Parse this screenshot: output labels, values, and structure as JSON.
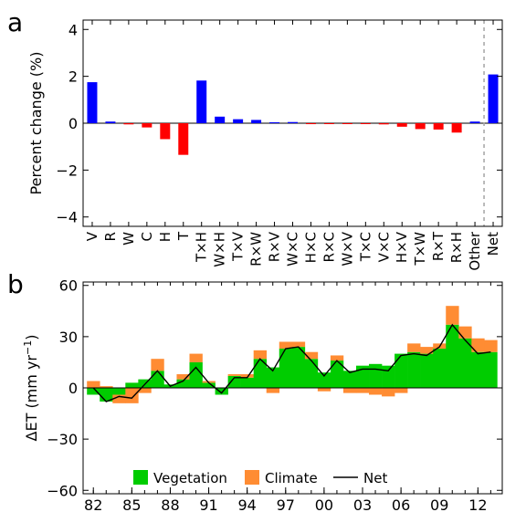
{
  "chart_data": [
    {
      "type": "bar",
      "panel_label": "a",
      "ylabel": "Percent change (%)",
      "ylim": [
        -4.4,
        4.4
      ],
      "yticks": [
        -4,
        -2,
        0,
        2,
        4
      ],
      "categories": [
        "V",
        "R",
        "W",
        "C",
        "H",
        "T",
        "T×H",
        "W×H",
        "T×V",
        "R×W",
        "R×V",
        "W×C",
        "H×C",
        "R×C",
        "W×V",
        "T×C",
        "V×C",
        "H×V",
        "T×W",
        "R×T",
        "R×H",
        "Other",
        "Net"
      ],
      "values": [
        1.75,
        0.07,
        -0.05,
        -0.18,
        -0.68,
        -1.35,
        1.82,
        0.28,
        0.17,
        0.14,
        0.04,
        0.05,
        -0.04,
        -0.03,
        -0.03,
        -0.03,
        -0.05,
        -0.15,
        -0.25,
        -0.27,
        -0.4,
        0.07,
        2.08
      ],
      "positive_color": "#0000ff",
      "negative_color": "#ff0000",
      "separator_before": "Net"
    },
    {
      "type": "bar",
      "panel_label": "b",
      "ylabel": "ΔET (mm yr",
      "ylabel_sup": "−1",
      "ylabel_end": ")",
      "ylim": [
        -62,
        62
      ],
      "yticks": [
        -60,
        -30,
        0,
        30,
        60
      ],
      "x": [
        1982,
        1983,
        1984,
        1985,
        1986,
        1987,
        1988,
        1989,
        1990,
        1991,
        1992,
        1993,
        1994,
        1995,
        1996,
        1997,
        1998,
        1999,
        2000,
        2001,
        2002,
        2003,
        2004,
        2005,
        2006,
        2007,
        2008,
        2009,
        2010,
        2011,
        2012,
        2013
      ],
      "xtick_labels": [
        "82",
        "85",
        "88",
        "91",
        "94",
        "97",
        "00",
        "03",
        "06",
        "09",
        "12"
      ],
      "xtick_years": [
        1982,
        1985,
        1988,
        1991,
        1994,
        1997,
        2000,
        2003,
        2006,
        2009,
        2012
      ],
      "series": [
        {
          "name": "Vegetation",
          "color": "#00cc00",
          "values": [
            -4,
            -8,
            -4,
            3,
            5,
            10,
            2,
            5,
            15,
            3,
            -4,
            7,
            6,
            17,
            12,
            23,
            24,
            17,
            9,
            16,
            10,
            13,
            14,
            13,
            20,
            21,
            20,
            23,
            37,
            29,
            21,
            21
          ]
        },
        {
          "name": "Climate",
          "color": "#ff8c33",
          "values": [
            4,
            1,
            -5,
            -9,
            -3,
            7,
            0,
            3,
            5,
            1,
            0,
            1,
            2,
            5,
            -3,
            4,
            3,
            4,
            -2,
            3,
            -3,
            -3,
            -4,
            -5,
            -3,
            5,
            4,
            3,
            11,
            7,
            8,
            7
          ]
        },
        {
          "name": "Net",
          "color": "#000000",
          "values": [
            0,
            -8,
            -5,
            -6,
            2,
            10,
            1,
            4,
            12,
            3,
            -3,
            6,
            6,
            17,
            10,
            23,
            24,
            16,
            7,
            16,
            9,
            11,
            11,
            10,
            19,
            20,
            19,
            24,
            37,
            28,
            20,
            21
          ]
        }
      ]
    }
  ]
}
